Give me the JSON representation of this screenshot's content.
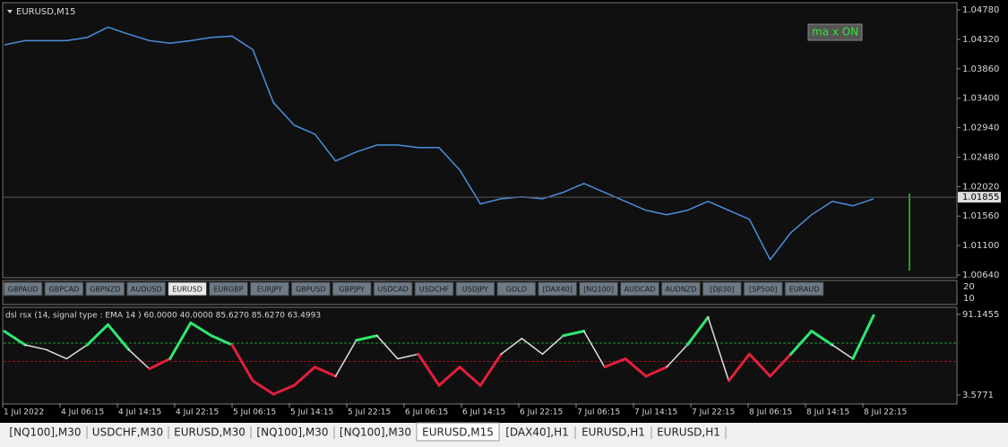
{
  "symbol_buttons": [
    "GBPAUD",
    "GBPCAD",
    "GBPNZD",
    "AUDUSD",
    "EURUSD",
    "EURGBP",
    "EURJPY",
    "GBPUSD",
    "GBPJPY",
    "USDCAD",
    "USDCHF",
    "USDJPY",
    "GOLD",
    "[DAX40]",
    "[NQ100]",
    "AUDCAD",
    "AUDNZD",
    "[DJI30]",
    "[SP500]",
    "EURAUD"
  ],
  "active_symbol": 4,
  "badge": "ma x ON",
  "button_panel_scale": [
    "20",
    "10"
  ],
  "time_axis": [
    "1 Jul 2022",
    "4 Jul 06:15",
    "4 Jul 14:15",
    "4 Jul 22:15",
    "5 Jul 06:15",
    "5 Jul 14:15",
    "5 Jul 22:15",
    "6 Jul 06:15",
    "6 Jul 14:15",
    "6 Jul 22:15",
    "7 Jul 06:15",
    "7 Jul 14:15",
    "7 Jul 22:15",
    "8 Jul 06:15",
    "8 Jul 14:15",
    "8 Jul 22:15"
  ],
  "tabs": [
    "[NQ100],M30",
    "USDCHF,M30",
    "EURUSD,M30",
    "[NQ100],M30",
    "[NQ100],M30",
    "EURUSD,M15",
    "[DAX40],H1",
    "EURUSD,H1",
    "EURUSD,H1"
  ],
  "active_tab": 5,
  "chart_data": [
    {
      "type": "line",
      "title": "EURUSD,M15",
      "color": "#4a8fdc",
      "values": [
        1.04235,
        1.043,
        1.043,
        1.043,
        1.0435,
        1.0451,
        1.044,
        1.043,
        1.0426,
        1.043,
        1.0435,
        1.0437,
        1.0416,
        1.0333,
        1.0298,
        1.0284,
        1.0242,
        1.0256,
        1.0267,
        1.0267,
        1.0263,
        1.0263,
        1.0228,
        1.0175,
        1.0183,
        1.0186,
        1.0183,
        1.0193,
        1.0207,
        1.0193,
        1.0179,
        1.0165,
        1.0158,
        1.0165,
        1.0179,
        1.0165,
        1.0151,
        1.0088,
        1.013,
        1.0158,
        1.0179,
        1.0172,
        1.0183
      ],
      "ylim": [
        1.00598,
        1.04864
      ],
      "yticks": [
        {
          "value": 1.0478,
          "label": "1.04780"
        },
        {
          "value": 1.0432,
          "label": "1.04320"
        },
        {
          "value": 1.0386,
          "label": "1.03860"
        },
        {
          "value": 1.034,
          "label": "1.03400"
        },
        {
          "value": 1.0294,
          "label": "1.02940"
        },
        {
          "value": 1.0248,
          "label": "1.02480"
        },
        {
          "value": 1.0202,
          "label": "1.02020"
        },
        {
          "value": 1.0156,
          "label": "1.01560"
        },
        {
          "value": 1.011,
          "label": "1.01100"
        },
        {
          "value": 1.0064,
          "label": "1.00640"
        }
      ],
      "last_price": {
        "value": 1.01855,
        "label": "1.01855"
      }
    },
    {
      "type": "line",
      "title": "dsl rsx (14, signal type : EMA  14 ) 60.0000 40.0000 85.6270 85.6270 63.4993",
      "values": [
        72.7,
        58,
        53,
        43,
        58,
        80,
        53,
        32,
        43,
        82,
        68,
        58,
        19,
        4.5,
        14,
        34,
        24,
        63,
        68,
        43,
        48,
        14,
        34,
        14,
        48,
        65,
        48,
        68,
        73,
        34,
        43,
        24,
        34,
        58,
        88,
        19,
        48,
        24,
        48,
        73,
        58,
        43,
        90
      ],
      "ylim": [
        -5.2,
        98.9
      ],
      "yticks": [
        {
          "value": 91.1455,
          "label": "91.1455"
        },
        {
          "value": 3.5771,
          "label": "3.5771"
        }
      ],
      "levels": [
        60,
        40
      ],
      "colors": [
        "#2ee870",
        "#e0e0e0",
        "#e0203c"
      ]
    }
  ]
}
